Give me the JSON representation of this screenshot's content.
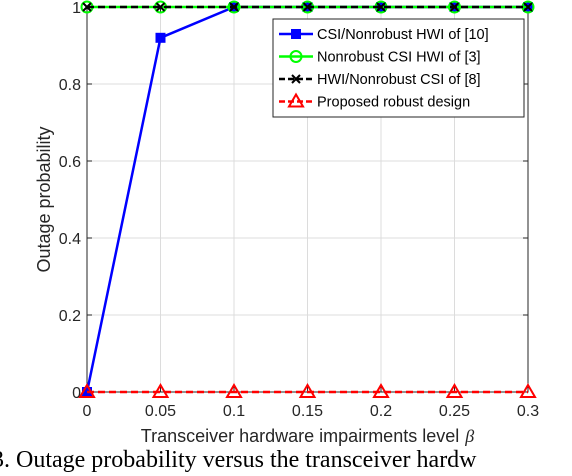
{
  "chart_data": {
    "type": "line",
    "xlabel": "Transceiver hardware impairments level",
    "xlabel_symbol": "β",
    "ylabel": "Outage probability",
    "x": [
      0,
      0.05,
      0.1,
      0.15,
      0.2,
      0.25,
      0.3
    ],
    "xticks": [
      "0",
      "0.05",
      "0.1",
      "0.15",
      "0.2",
      "0.25",
      "0.3"
    ],
    "yticks": [
      "0",
      "0.2",
      "0.4",
      "0.6",
      "0.8",
      "1"
    ],
    "xlim": [
      0,
      0.3
    ],
    "ylim": [
      0,
      1
    ],
    "grid": true,
    "legend_position": "top-right",
    "series": [
      {
        "name": "CSI/Nonrobust HWI of [10]",
        "color": "#0000ff",
        "marker": "square",
        "dash": "solid",
        "values": [
          0,
          0.92,
          1,
          1,
          1,
          1,
          1
        ]
      },
      {
        "name": "Nonrobust CSI HWI of [3]",
        "color": "#00ff00",
        "marker": "circle",
        "dash": "solid",
        "values": [
          1,
          1,
          1,
          1,
          1,
          1,
          1
        ]
      },
      {
        "name": "HWI/Nonrobust CSI of [8]",
        "color": "#000000",
        "marker": "x",
        "dash": "dashed",
        "values": [
          1,
          1,
          1,
          1,
          1,
          1,
          1
        ]
      },
      {
        "name": "Proposed robust design",
        "color": "#ff0000",
        "marker": "triangle",
        "dash": "dashed",
        "values": [
          0,
          0,
          0,
          0,
          0,
          0,
          0
        ]
      }
    ]
  },
  "caption": "3. Outage probability versus the transceiver hardw"
}
